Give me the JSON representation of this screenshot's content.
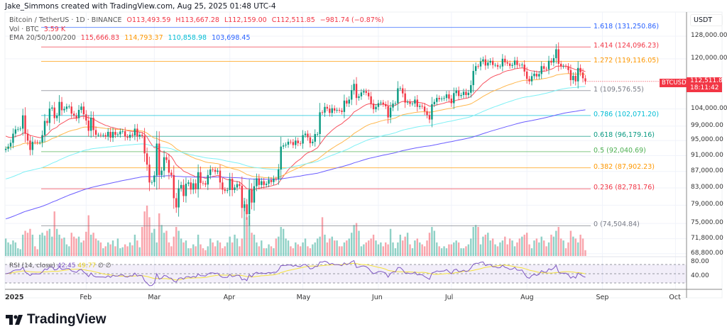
{
  "credit": "Jake_Simmons created with TradingView.com, Aug 25, 2025 01:48 UTC-4",
  "legend": {
    "symbol": "Bitcoin / TetherUS · 1D · BINANCE",
    "open": "O113,493.59",
    "high": "H113,667.28",
    "low": "L112,159.00",
    "close": "C112,511.85",
    "change": "−981.74 (−0.87%)",
    "vol_label": "Vol · BTC",
    "vol_value": "3.59 K",
    "ema_label": "EMA 20/50/100/200",
    "ema_values": [
      "115,666.83",
      "114,793.37",
      "110,858.98",
      "103,698.45"
    ]
  },
  "colors": {
    "up": "#089981",
    "down": "#f23645",
    "ema": [
      "#f23645",
      "#ff9800",
      "#00bcd4",
      "#2962ff"
    ],
    "ema_lines": [
      "#f7525f",
      "#ffb74d",
      "#7ef0f5",
      "#6a5cff"
    ],
    "rsi": "#7e57c2",
    "rsi_ma": "#f5e23b"
  },
  "price_axis": {
    "unit": "USDT",
    "scale": "log",
    "ticks": [
      "128,000.00",
      "120,000.00",
      "104,000.00",
      "99,000.00",
      "95,000.00",
      "91,000.00",
      "87,000.00",
      "83,000.00",
      "79,000.00",
      "75,000.00",
      "71,800.00",
      "68,800.00"
    ],
    "last_symbol": "BTCUSDT",
    "last_price": "112,511.85",
    "countdown": "18:11:42"
  },
  "time_axis": [
    "2025",
    "Feb",
    "Mar",
    "Apr",
    "May",
    "Jun",
    "Jul",
    "Aug",
    "Sep",
    "Oct"
  ],
  "fib_levels": [
    {
      "label": "1.618 (131,250.86)",
      "price": 131250.86,
      "color": "#2962ff"
    },
    {
      "label": "1.414 (124,096.23)",
      "price": 124096.23,
      "color": "#f23645"
    },
    {
      "label": "1.272 (119,116.05)",
      "price": 119116.05,
      "color": "#ff9800"
    },
    {
      "label": "1 (109,576.55)",
      "price": 109576.55,
      "color": "#787b86"
    },
    {
      "label": "0.786 (102,071.20)",
      "price": 102071.2,
      "color": "#00bcd4"
    },
    {
      "label": "0.618 (96,179.16)",
      "price": 96179.16,
      "color": "#089981"
    },
    {
      "label": "0.5 (92,040.69)",
      "price": 92040.69,
      "color": "#4caf50"
    },
    {
      "label": "0.382 (87,902.23)",
      "price": 87902.23,
      "color": "#ff9800"
    },
    {
      "label": "0.236 (82,781.76)",
      "price": 82781.76,
      "color": "#f23645"
    },
    {
      "label": "0 (74,504.84)",
      "price": 74504.84,
      "color": "#787b86"
    }
  ],
  "rsi": {
    "label": "RSI (14, close)",
    "value": "42.45",
    "ma_value": "49.77",
    "extra": [
      "∅",
      "∅"
    ],
    "axis": [
      "80.00",
      "40.00"
    ]
  },
  "logo": "TradingView",
  "chart_data": {
    "type": "candlestick",
    "title": "Bitcoin / TetherUS · 1D · BINANCE",
    "x_start": "2024-12-30",
    "x_end": "2025-08-25",
    "interval": "1D",
    "y_scale": "log",
    "ylim": [
      68800,
      131250
    ],
    "last_open": 113493.59,
    "close_k": [
      92.8,
      93.4,
      94.4,
      96.9,
      98.1,
      98.2,
      98.3,
      102.1,
      96.9,
      95.0,
      92.5,
      94.7,
      94.6,
      94.5,
      94.5,
      96.5,
      100.5,
      99.9,
      104.1,
      104.4,
      101.3,
      102.0,
      106.1,
      103.6,
      104.0,
      104.7,
      104.7,
      102.6,
      102.0,
      101.3,
      103.7,
      104.7,
      102.4,
      100.6,
      97.7,
      101.4,
      97.9,
      96.6,
      96.6,
      96.5,
      96.5,
      96.1,
      97.4,
      95.8,
      97.4,
      96.6,
      96.7,
      97.5,
      97.6,
      96.1,
      95.8,
      96.6,
      96.4,
      98.3,
      96.1,
      96.6,
      96.3,
      91.6,
      88.7,
      84.3,
      84.4,
      86.0,
      94.2,
      86.1,
      87.2,
      90.6,
      89.9,
      86.7,
      86.1,
      80.6,
      78.5,
      82.9,
      83.7,
      81.1,
      84.0,
      84.3,
      82.6,
      84.1,
      82.7,
      86.8,
      84.2,
      84.1,
      83.8,
      86.1,
      87.5,
      87.4,
      86.9,
      87.2,
      84.3,
      82.6,
      82.3,
      82.5,
      85.2,
      82.5,
      83.1,
      83.9,
      83.5,
      78.4,
      79.2,
      77.0,
      82.6,
      79.6,
      83.4,
      85.3,
      83.7,
      84.6,
      83.7,
      84.0,
      84.9,
      84.4,
      85.2,
      85.1,
      87.5,
      93.4,
      93.7,
      93.9,
      94.7,
      94.6,
      93.8,
      95.0,
      94.3,
      94.2,
      96.5,
      96.9,
      95.9,
      94.3,
      94.7,
      96.8,
      96.8,
      103.0,
      102.9,
      104.6,
      104.1,
      102.8,
      104.2,
      103.5,
      103.7,
      103.5,
      103.1,
      106.5,
      105.6,
      106.8,
      109.7,
      111.7,
      107.3,
      107.8,
      109.0,
      109.4,
      108.9,
      107.8,
      105.6,
      103.9,
      104.6,
      105.7,
      105.9,
      105.4,
      104.8,
      101.5,
      104.4,
      105.6,
      105.7,
      110.3,
      110.3,
      108.7,
      105.9,
      106.1,
      105.5,
      105.6,
      106.8,
      104.6,
      104.9,
      104.7,
      103.3,
      102.2,
      100.9,
      105.4,
      106.1,
      107.3,
      106.9,
      107.1,
      107.3,
      108.4,
      107.1,
      105.7,
      108.8,
      109.6,
      107.9,
      108.2,
      109.2,
      108.2,
      108.9,
      111.3,
      115.9,
      117.5,
      117.4,
      119.1,
      119.8,
      117.7,
      118.7,
      119.3,
      117.9,
      117.9,
      117.3,
      117.4,
      120.0,
      118.8,
      118.4,
      117.6,
      117.9,
      119.4,
      117.9,
      117.8,
      118.0,
      115.7,
      113.3,
      112.5,
      114.2,
      115.0,
      114.1,
      114.9,
      117.5,
      116.6,
      116.5,
      119.3,
      118.7,
      120.2,
      123.3,
      118.3,
      117.4,
      117.5,
      117.4,
      116.2,
      112.9,
      114.3,
      112.5,
      116.9,
      115.4,
      113.5,
      112.5
    ],
    "volume_k": [
      18,
      14,
      12,
      16,
      14,
      8,
      7,
      22,
      26,
      24,
      28,
      22,
      10,
      7,
      22,
      24,
      21,
      26,
      28,
      20,
      46,
      28,
      22,
      18,
      19,
      12,
      10,
      24,
      20,
      18,
      20,
      14,
      16,
      25,
      42,
      22,
      24,
      18,
      16,
      14,
      8,
      10,
      14,
      12,
      16,
      10,
      18,
      8,
      9,
      12,
      10,
      14,
      11,
      22,
      16,
      9,
      30,
      46,
      52,
      40,
      24,
      28,
      14,
      44,
      32,
      24,
      26,
      14,
      10,
      20,
      30,
      26,
      18,
      14,
      16,
      8,
      8,
      12,
      10,
      22,
      12,
      8,
      6,
      10,
      18,
      14,
      10,
      16,
      14,
      8,
      10,
      14,
      20,
      14,
      22,
      18,
      10,
      18,
      60,
      40,
      42,
      24,
      22,
      14,
      10,
      16,
      8,
      8,
      12,
      10,
      8,
      18,
      20,
      30,
      28,
      18,
      16,
      10,
      8,
      14,
      12,
      10,
      14,
      18,
      10,
      8,
      12,
      14,
      18,
      20,
      40,
      22,
      14,
      18,
      20,
      16,
      16,
      10,
      10,
      14,
      16,
      18,
      24,
      32,
      34,
      26,
      10,
      12,
      14,
      16,
      18,
      22,
      16,
      12,
      14,
      10,
      14,
      12,
      28,
      14,
      8,
      14,
      22,
      16,
      20,
      24,
      12,
      8,
      16,
      18,
      14,
      12,
      10,
      16,
      24,
      30,
      26,
      14,
      10,
      8,
      10,
      8,
      12,
      12,
      14,
      16,
      14,
      8,
      8,
      10,
      12,
      18,
      30,
      32,
      30,
      12,
      20,
      22,
      24,
      16,
      18,
      12,
      10,
      14,
      16,
      20,
      12,
      18,
      16,
      10,
      14,
      18,
      20,
      22,
      24,
      12,
      8,
      16,
      18,
      14,
      20,
      16,
      10,
      14,
      22,
      20,
      26,
      30,
      18,
      16,
      8,
      14,
      26,
      20,
      18,
      14,
      22,
      18,
      6
    ],
    "indicators": [
      "EMA 20",
      "EMA 50",
      "EMA 100",
      "EMA 200",
      "RSI 14 + MA"
    ],
    "grid": true
  }
}
